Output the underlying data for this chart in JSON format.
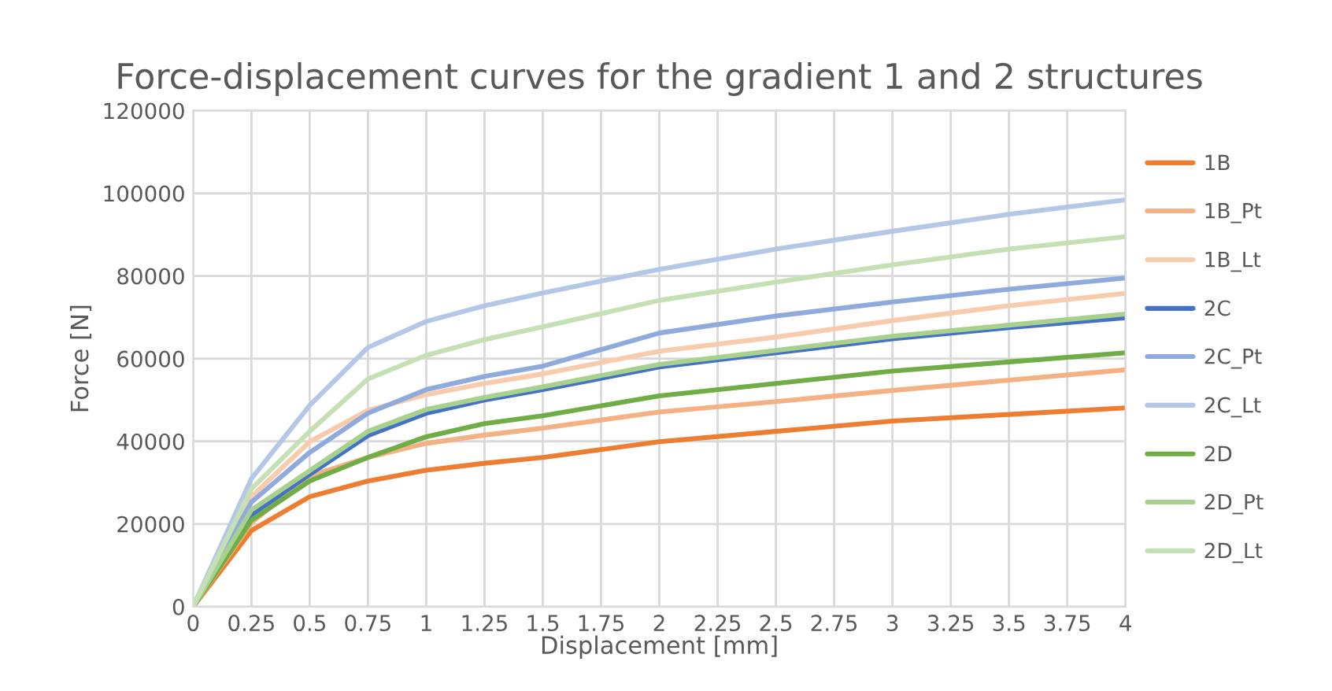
{
  "chart_data": {
    "type": "line",
    "title": "Force-displacement curves for the gradient 1 and 2 structures",
    "xlabel": "Displacement [mm]",
    "ylabel": "Force [N]",
    "x": [
      0,
      0.25,
      0.5,
      0.75,
      1,
      1.25,
      1.5,
      2,
      2.5,
      3,
      3.5,
      4
    ],
    "series": [
      {
        "name": "1B",
        "color": "#ed7d31",
        "values": [
          0,
          18400,
          26600,
          30400,
          33000,
          34700,
          36100,
          39900,
          42400,
          44900,
          46500,
          48100
        ]
      },
      {
        "name": "1B_Pt",
        "color": "#f4b183",
        "values": [
          0,
          20300,
          31600,
          36100,
          39500,
          41500,
          43200,
          47100,
          49600,
          52300,
          54800,
          57300
        ]
      },
      {
        "name": "1B_Lt",
        "color": "#f8cbad",
        "values": [
          0,
          26600,
          39900,
          47500,
          51300,
          54000,
          56300,
          61800,
          65200,
          69200,
          72800,
          75800
        ]
      },
      {
        "name": "2C",
        "color": "#4472c4",
        "values": [
          0,
          22200,
          32000,
          41400,
          46800,
          50000,
          52500,
          58000,
          61400,
          64800,
          67500,
          69900
        ]
      },
      {
        "name": "2C_Pt",
        "color": "#8faadc",
        "values": [
          0,
          25300,
          37300,
          46800,
          52500,
          55700,
          58200,
          66200,
          70300,
          73700,
          76800,
          79500
        ]
      },
      {
        "name": "2C_Lt",
        "color": "#b4c7e7",
        "values": [
          0,
          31000,
          48700,
          62700,
          69000,
          72800,
          75900,
          81600,
          86500,
          90800,
          94900,
          98400
        ]
      },
      {
        "name": "2D",
        "color": "#70ad47",
        "values": [
          0,
          20900,
          30400,
          36100,
          41100,
          44300,
          46200,
          51000,
          54000,
          57000,
          59200,
          61400
        ]
      },
      {
        "name": "2D_Pt",
        "color": "#a9d18e",
        "values": [
          0,
          23400,
          32900,
          42400,
          47700,
          50600,
          53200,
          58600,
          62000,
          65400,
          68100,
          70800
        ]
      },
      {
        "name": "2D_Lt",
        "color": "#c5e0b4",
        "values": [
          0,
          28500,
          42400,
          55100,
          60800,
          64600,
          67700,
          74100,
          78500,
          82700,
          86500,
          89500
        ]
      }
    ],
    "xlim": [
      0,
      4
    ],
    "xticks": [
      0,
      0.25,
      0.5,
      0.75,
      1,
      1.25,
      1.5,
      1.75,
      2,
      2.25,
      2.5,
      2.75,
      3,
      3.25,
      3.5,
      3.75,
      4
    ],
    "ylim": [
      0,
      120000
    ],
    "yticks": [
      0,
      20000,
      40000,
      60000,
      80000,
      100000,
      120000
    ],
    "grid": true,
    "legend": "right",
    "marker": "none",
    "line_style": "solid"
  }
}
